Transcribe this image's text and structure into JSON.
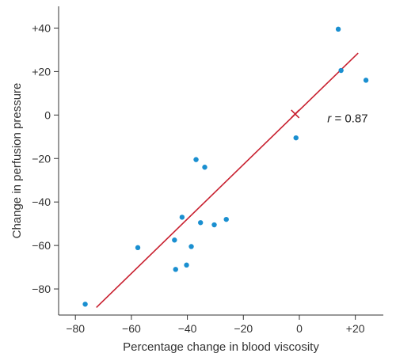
{
  "chart_data": {
    "type": "scatter",
    "xlabel": "Percentage change in blood viscosity",
    "ylabel": "Change in perfusion pressure",
    "xlim": [
      -86,
      30
    ],
    "ylim": [
      -92,
      50
    ],
    "xticks": [
      -80,
      -60,
      -40,
      -20,
      0,
      20
    ],
    "xtick_labels": [
      "−80",
      "−60",
      "−40",
      "−20",
      "0",
      "+20"
    ],
    "yticks": [
      -80,
      -60,
      -40,
      -20,
      0,
      20,
      40
    ],
    "ytick_labels": [
      "−80",
      "−60",
      "−40",
      "−20",
      "0",
      "+20",
      "+40"
    ],
    "grid": false,
    "points": [
      {
        "x": -76.5,
        "y": -87
      },
      {
        "x": -57.7,
        "y": -61
      },
      {
        "x": -44.6,
        "y": -57.5
      },
      {
        "x": -44.2,
        "y": -71
      },
      {
        "x": -41.9,
        "y": -47
      },
      {
        "x": -40.3,
        "y": -69
      },
      {
        "x": -38.6,
        "y": -60.5
      },
      {
        "x": -36.9,
        "y": -20.5
      },
      {
        "x": -35.3,
        "y": -49.5
      },
      {
        "x": -33.8,
        "y": -24
      },
      {
        "x": -30.4,
        "y": -50.5
      },
      {
        "x": -26.1,
        "y": -48
      },
      {
        "x": -1.2,
        "y": -10.5
      },
      {
        "x": 13.9,
        "y": 39.5
      },
      {
        "x": 14.9,
        "y": 20.5
      },
      {
        "x": 23.8,
        "y": 16
      }
    ],
    "regression_line": {
      "x": [
        -72.5,
        21
      ],
      "y": [
        -88.5,
        28.5
      ]
    },
    "mean_marker": {
      "x": -1.5,
      "y": 0.5
    },
    "annotation": {
      "prefix": "r",
      "text": " = 0.87",
      "x": 10,
      "y": -1.5
    },
    "colors": {
      "points": "#1a8fd0",
      "line": "#c8202f",
      "axes": "#333333"
    }
  }
}
